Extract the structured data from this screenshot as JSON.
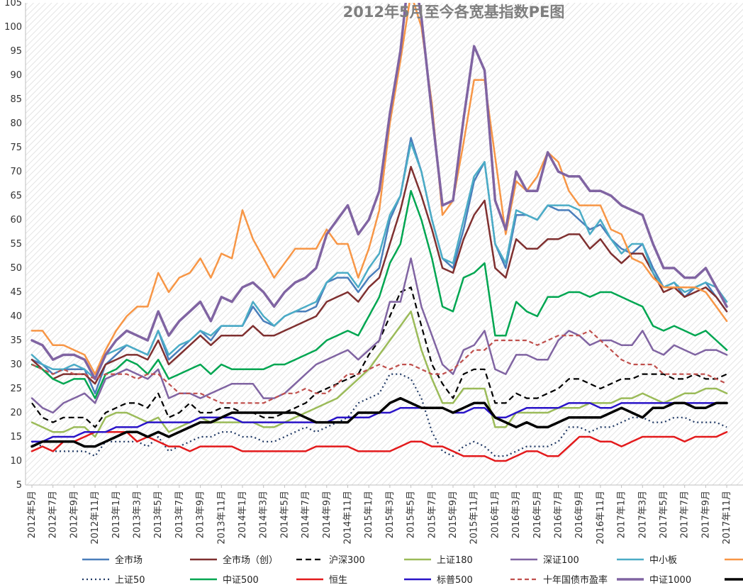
{
  "chart_data": {
    "type": "line",
    "title": "2012年5月至今各宽基指数PE图",
    "xlabel": "",
    "ylabel": "",
    "ylim": [
      5,
      105
    ],
    "yticks": [
      5,
      10,
      15,
      20,
      25,
      30,
      35,
      40,
      45,
      50,
      55,
      60,
      65,
      70,
      75,
      80,
      85,
      90,
      95,
      100,
      105
    ],
    "x": [
      "2012年5月",
      "2012年6月",
      "2012年7月",
      "2012年8月",
      "2012年9月",
      "2012年10月",
      "2012年11月",
      "2012年12月",
      "2013年1月",
      "2013年2月",
      "2013年3月",
      "2013年4月",
      "2013年5月",
      "2013年6月",
      "2013年7月",
      "2013年8月",
      "2013年9月",
      "2013年10月",
      "2013年11月",
      "2013年12月",
      "2014年1月",
      "2014年2月",
      "2014年3月",
      "2014年4月",
      "2014年5月",
      "2014年6月",
      "2014年7月",
      "2014年8月",
      "2014年9月",
      "2014年10月",
      "2014年11月",
      "2014年12月",
      "2015年1月",
      "2015年2月",
      "2015年3月",
      "2015年4月",
      "2015年5月",
      "2015年6月",
      "2015年7月",
      "2015年8月",
      "2015年9月",
      "2015年10月",
      "2015年11月",
      "2015年12月",
      "2016年1月",
      "2016年2月",
      "2016年3月",
      "2016年4月",
      "2016年5月",
      "2016年6月",
      "2016年7月",
      "2016年8月",
      "2016年9月",
      "2016年10月",
      "2016年11月",
      "2016年12月",
      "2017年1月",
      "2017年2月",
      "2017年3月",
      "2017年4月",
      "2017年5月",
      "2017年6月",
      "2017年7月",
      "2017年8月",
      "2017年9月",
      "2017年10月",
      "2017年11月"
    ],
    "x_tick_labels": [
      "2012年5月",
      "2012年7月",
      "2012年9月",
      "2012年11月",
      "2013年1月",
      "2013年3月",
      "2013年5月",
      "2013年7月",
      "2013年9月",
      "2013年11月",
      "2014年1月",
      "2014年3月",
      "2014年5月",
      "2014年7月",
      "2014年9月",
      "2014年11月",
      "2015年1月",
      "2015年3月",
      "2015年5月",
      "2015年7月",
      "2015年9月",
      "2015年11月",
      "2016年1月",
      "2016年3月",
      "2016年5月",
      "2016年7月",
      "2016年9月",
      "2016年11月",
      "2017年1月",
      "2017年3月",
      "2017年5月",
      "2017年7月",
      "2017年9月",
      "2017年11月"
    ],
    "legend_position": "bottom",
    "grid": false,
    "series": [
      {
        "name": "全市场",
        "color": "#4a7ebb",
        "dash": "solid",
        "width": 2.5,
        "values": [
          31,
          30,
          28,
          29,
          29,
          29,
          24,
          30,
          32,
          34,
          33,
          32,
          37,
          31,
          33,
          35,
          37,
          35,
          38,
          38,
          38,
          42,
          39,
          38,
          40,
          41,
          41,
          42,
          47,
          48,
          48,
          45,
          48,
          50,
          60,
          65,
          77,
          70,
          60,
          52,
          50,
          58,
          68,
          72,
          55,
          50,
          61,
          61,
          60,
          63,
          62,
          62,
          60,
          58,
          59,
          56,
          54,
          53,
          55,
          50,
          46,
          47,
          44,
          46,
          47,
          44,
          41
        ]
      },
      {
        "name": "全市场（创）",
        "color": "#7f3030",
        "dash": "solid",
        "width": 2.5,
        "values": [
          31,
          29,
          27,
          28,
          28,
          28,
          26,
          30,
          31,
          32,
          32,
          31,
          35,
          30,
          32,
          34,
          36,
          34,
          36,
          36,
          36,
          38,
          36,
          36,
          37,
          38,
          39,
          40,
          43,
          44,
          45,
          43,
          46,
          48,
          55,
          62,
          71,
          65,
          58,
          50,
          49,
          56,
          61,
          64,
          50,
          48,
          56,
          54,
          54,
          56,
          56,
          57,
          57,
          54,
          56,
          53,
          51,
          53,
          53,
          49,
          45,
          46,
          44,
          45,
          46,
          44,
          41
        ]
      },
      {
        "name": "沪深300",
        "color": "#000000",
        "dash": "8,5",
        "width": 2.2,
        "values": [
          22,
          19,
          18,
          19,
          19,
          19,
          17,
          20,
          21,
          22,
          22,
          21,
          24,
          19,
          20,
          22,
          20,
          20,
          21,
          21,
          20,
          20,
          19,
          19,
          20,
          21,
          22,
          24,
          25,
          26,
          27,
          28,
          32,
          35,
          40,
          45,
          46,
          38,
          30,
          26,
          23,
          28,
          29,
          29,
          22,
          22,
          24,
          23,
          23,
          24,
          25,
          27,
          27,
          26,
          25,
          26,
          27,
          27,
          28,
          28,
          28,
          27,
          27,
          28,
          27,
          27,
          28
        ]
      },
      {
        "name": "上证180",
        "color": "#9bbb59",
        "dash": "solid",
        "width": 2.5,
        "values": [
          18,
          17,
          16,
          16,
          17,
          17,
          15,
          19,
          20,
          20,
          19,
          18,
          19,
          16,
          17,
          18,
          19,
          18,
          18,
          18,
          18,
          18,
          17,
          17,
          18,
          19,
          20,
          21,
          22,
          23,
          25,
          27,
          29,
          32,
          35,
          38,
          41,
          33,
          27,
          22,
          22,
          25,
          25,
          25,
          17,
          17,
          20,
          20,
          20,
          20,
          21,
          21,
          21,
          22,
          22,
          22,
          23,
          23,
          24,
          23,
          22,
          23,
          24,
          24,
          25,
          25,
          24
        ]
      },
      {
        "name": "深证100",
        "color": "#8064a2",
        "dash": "solid",
        "width": 2.5,
        "values": [
          23,
          21,
          20,
          22,
          23,
          24,
          22,
          27,
          28,
          29,
          28,
          27,
          29,
          23,
          24,
          24,
          23,
          24,
          25,
          26,
          26,
          26,
          23,
          23,
          24,
          26,
          28,
          30,
          31,
          32,
          33,
          31,
          33,
          35,
          43,
          43,
          52,
          42,
          36,
          30,
          28,
          33,
          34,
          37,
          29,
          28,
          32,
          32,
          31,
          31,
          35,
          37,
          36,
          34,
          35,
          35,
          34,
          34,
          37,
          33,
          32,
          34,
          33,
          32,
          33,
          33,
          32
        ]
      },
      {
        "name": "中小板",
        "color": "#4bacc6",
        "dash": "solid",
        "width": 2.5,
        "values": [
          32,
          30,
          29,
          29,
          30,
          29,
          27,
          32,
          33,
          34,
          33,
          32,
          37,
          32,
          34,
          35,
          37,
          36,
          38,
          38,
          38,
          43,
          40,
          38,
          40,
          41,
          42,
          43,
          47,
          49,
          49,
          46,
          50,
          53,
          61,
          65,
          76,
          70,
          60,
          52,
          51,
          60,
          69,
          72,
          55,
          51,
          62,
          61,
          60,
          63,
          63,
          63,
          62,
          57,
          60,
          56,
          53,
          55,
          55,
          49,
          46,
          47,
          45,
          46,
          47,
          46,
          43
        ]
      },
      {
        "name": "",
        "color": "#f79646",
        "dash": "solid",
        "width": 2.5,
        "values": [
          37,
          37,
          34,
          34,
          33,
          32,
          28,
          33,
          37,
          40,
          42,
          42,
          49,
          45,
          48,
          49,
          52,
          48,
          53,
          52,
          62,
          56,
          52,
          48,
          51,
          54,
          54,
          54,
          58,
          55,
          55,
          48,
          54,
          62,
          80,
          93,
          107,
          100,
          84,
          61,
          64,
          76,
          89,
          89,
          73,
          57,
          68,
          66,
          69,
          74,
          72,
          66,
          63,
          63,
          63,
          58,
          57,
          52,
          51,
          48,
          46,
          46,
          46,
          46,
          45,
          42,
          39
        ]
      },
      {
        "name": "上证50",
        "color": "#1f3864",
        "dash": "2,4",
        "width": 2.2,
        "values": [
          14,
          13,
          12,
          12,
          12,
          12,
          11,
          14,
          14,
          14,
          14,
          13,
          15,
          12,
          13,
          14,
          15,
          15,
          16,
          16,
          15,
          15,
          14,
          14,
          15,
          16,
          17,
          16,
          17,
          18,
          19,
          22,
          23,
          24,
          28,
          28,
          27,
          23,
          16,
          12,
          11,
          13,
          14,
          13,
          11,
          11,
          12,
          13,
          13,
          13,
          14,
          17,
          17,
          16,
          17,
          17,
          18,
          19,
          19,
          18,
          18,
          19,
          19,
          18,
          18,
          18,
          17
        ]
      },
      {
        "name": "中证500",
        "color": "#00a651",
        "dash": "solid",
        "width": 2.5,
        "values": [
          30,
          29,
          27,
          26,
          27,
          27,
          23,
          28,
          29,
          31,
          30,
          28,
          31,
          27,
          28,
          29,
          30,
          28,
          30,
          29,
          29,
          29,
          29,
          30,
          30,
          31,
          32,
          33,
          35,
          36,
          37,
          36,
          40,
          44,
          51,
          55,
          66,
          60,
          52,
          42,
          41,
          48,
          49,
          51,
          36,
          36,
          43,
          41,
          40,
          44,
          44,
          45,
          45,
          44,
          45,
          45,
          44,
          43,
          42,
          38,
          37,
          38,
          37,
          36,
          37,
          35,
          33
        ]
      },
      {
        "name": "恒生",
        "color": "#e31a1c",
        "dash": "solid",
        "width": 2.5,
        "values": [
          12,
          13,
          12,
          14,
          14,
          15,
          16,
          16,
          16,
          16,
          14,
          15,
          14,
          13,
          13,
          12,
          13,
          13,
          13,
          13,
          12,
          12,
          12,
          12,
          12,
          12,
          12,
          13,
          13,
          13,
          13,
          12,
          12,
          12,
          12,
          13,
          14,
          14,
          13,
          13,
          12,
          11,
          11,
          11,
          10,
          10,
          11,
          12,
          12,
          11,
          11,
          13,
          15,
          15,
          14,
          14,
          13,
          14,
          15,
          15,
          15,
          15,
          14,
          15,
          15,
          15,
          16
        ]
      },
      {
        "name": "标普500",
        "color": "#2a14c8",
        "dash": "solid",
        "width": 2.5,
        "values": [
          14,
          14,
          15,
          15,
          15,
          16,
          16,
          16,
          17,
          17,
          17,
          18,
          18,
          18,
          18,
          18,
          19,
          19,
          19,
          19,
          18,
          18,
          18,
          18,
          18,
          18,
          18,
          18,
          18,
          19,
          19,
          19,
          19,
          20,
          20,
          21,
          21,
          21,
          21,
          21,
          20,
          20,
          21,
          21,
          19,
          19,
          20,
          21,
          21,
          21,
          21,
          22,
          22,
          22,
          21,
          21,
          22,
          22,
          22,
          22,
          22,
          22,
          22,
          22,
          22,
          22,
          22
        ]
      },
      {
        "name": "十年国债市盈率",
        "color": "#c0504d",
        "dash": "6,4",
        "width": 2.2,
        "values": [
          30,
          29,
          28,
          29,
          28,
          28,
          27,
          28,
          28,
          28,
          27,
          28,
          28,
          26,
          24,
          24,
          24,
          23,
          22,
          22,
          22,
          22,
          22,
          23,
          24,
          24,
          25,
          24,
          24,
          26,
          28,
          28,
          29,
          30,
          29,
          30,
          30,
          29,
          28,
          28,
          29,
          31,
          33,
          33,
          35,
          35,
          35,
          35,
          34,
          35,
          36,
          36,
          36,
          37,
          35,
          33,
          31,
          30,
          30,
          30,
          28,
          28,
          28,
          28,
          28,
          27,
          26
        ]
      },
      {
        "name": "中证1000",
        "color": "#8064a2",
        "dash": "solid",
        "width": 3.5,
        "values": [
          35,
          34,
          31,
          32,
          32,
          31,
          27,
          32,
          35,
          37,
          36,
          35,
          41,
          36,
          39,
          41,
          43,
          39,
          44,
          43,
          46,
          47,
          45,
          42,
          45,
          47,
          48,
          50,
          57,
          60,
          63,
          57,
          60,
          66,
          82,
          95,
          115,
          102,
          82,
          63,
          64,
          81,
          96,
          91,
          64,
          58,
          70,
          66,
          66,
          74,
          70,
          69,
          69,
          66,
          66,
          65,
          63,
          62,
          61,
          55,
          50,
          50,
          48,
          48,
          50,
          46,
          42
        ]
      },
      {
        "name": "",
        "color": "#000000",
        "dash": "solid",
        "width": 3.5,
        "values": [
          13,
          14,
          14,
          14,
          14,
          13,
          13,
          14,
          15,
          16,
          16,
          15,
          16,
          15,
          16,
          17,
          18,
          18,
          19,
          20,
          20,
          20,
          20,
          20,
          20,
          20,
          19,
          18,
          18,
          18,
          18,
          20,
          20,
          20,
          22,
          23,
          22,
          21,
          21,
          21,
          20,
          21,
          22,
          22,
          19,
          18,
          17,
          18,
          17,
          17,
          18,
          19,
          19,
          19,
          19,
          20,
          21,
          20,
          19,
          21,
          21,
          22,
          22,
          21,
          21,
          22,
          22
        ]
      }
    ]
  }
}
